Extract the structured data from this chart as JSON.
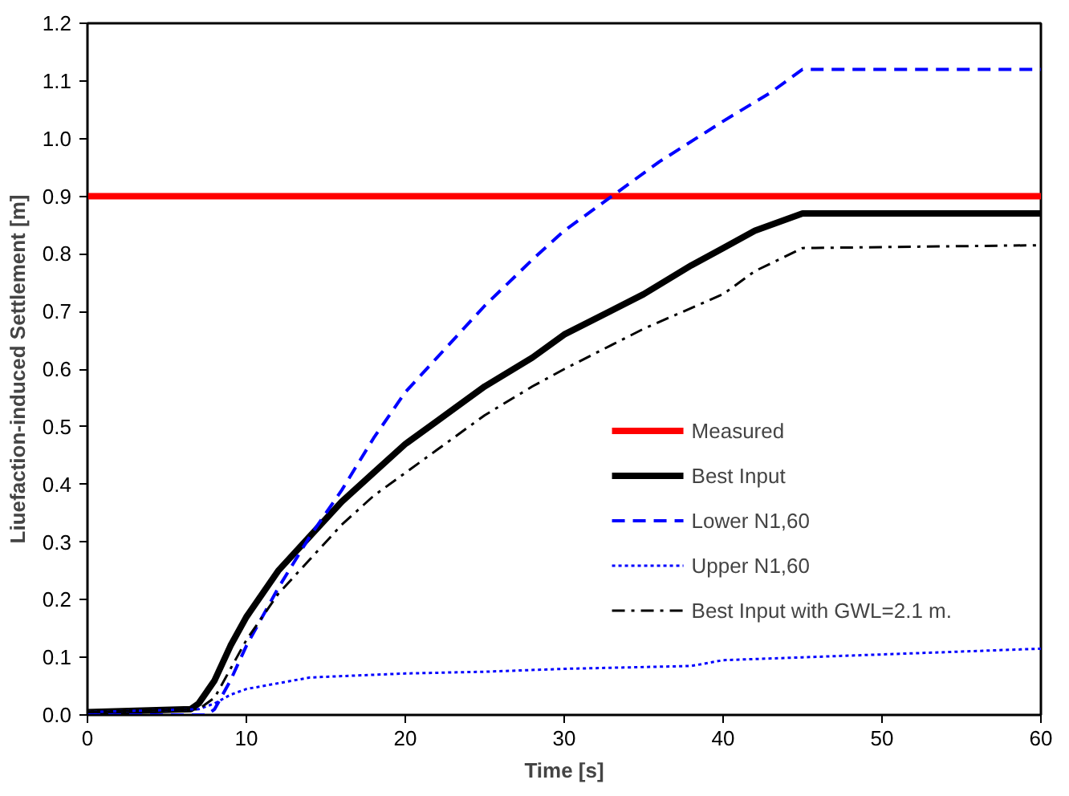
{
  "chart_data": {
    "type": "line",
    "xlabel": "Time [s]",
    "ylabel": "Liuefaction-induced Settlement [m]",
    "xlim": [
      0,
      60
    ],
    "xticks": [
      0,
      10,
      20,
      30,
      40,
      50,
      60
    ],
    "ylim": [
      0,
      1.2
    ],
    "yticks": [
      {
        "value": 0,
        "label": "0.0"
      },
      0.1,
      0.2,
      0.3,
      0.4,
      0.5,
      0.6,
      0.7,
      0.8,
      0.9,
      {
        "value": 1,
        "label": "1.0"
      },
      1.1,
      1.2
    ],
    "grid": false,
    "legend": "right",
    "series": [
      {
        "name": "Measured",
        "color": "#ff0000",
        "x": [
          0,
          60
        ],
        "values": [
          0.9,
          0.9
        ],
        "line_style": "solid"
      },
      {
        "name": "Best Input",
        "color": "#000000",
        "x": [
          0,
          6.5,
          7,
          8,
          9,
          10,
          12,
          14,
          16,
          18,
          20,
          22,
          25,
          28,
          30,
          35,
          38,
          40,
          42,
          45,
          60
        ],
        "values": [
          0.005,
          0.01,
          0.02,
          0.06,
          0.12,
          0.17,
          0.25,
          0.31,
          0.37,
          0.42,
          0.47,
          0.51,
          0.57,
          0.62,
          0.66,
          0.73,
          0.78,
          0.81,
          0.84,
          0.87,
          0.87
        ],
        "line_style": "solid"
      },
      {
        "name": "Lower N1,60",
        "color": "#0000ff",
        "x": [
          0,
          7.5,
          8,
          9,
          10,
          12,
          14,
          16,
          18,
          20,
          22,
          25,
          28,
          30,
          33,
          36,
          40,
          43,
          45,
          60
        ],
        "values": [
          0.0,
          0.0,
          0.01,
          0.06,
          0.12,
          0.22,
          0.31,
          0.39,
          0.48,
          0.56,
          0.62,
          0.71,
          0.79,
          0.84,
          0.9,
          0.96,
          1.03,
          1.08,
          1.12,
          1.12
        ],
        "line_style": "dashed"
      },
      {
        "name": "Upper N1,60",
        "color": "#0000ff",
        "x": [
          0,
          7,
          8,
          9,
          10,
          12,
          14,
          20,
          25,
          30,
          38,
          40,
          45,
          50,
          60
        ],
        "values": [
          0.005,
          0.01,
          0.02,
          0.035,
          0.045,
          0.055,
          0.065,
          0.072,
          0.075,
          0.08,
          0.085,
          0.095,
          0.1,
          0.105,
          0.115
        ],
        "line_style": "dotted"
      },
      {
        "name": "Best Input with GWL=2.1 m.",
        "color": "#000000",
        "x": [
          0,
          7,
          8,
          9,
          10,
          12,
          14,
          16,
          18,
          20,
          22,
          25,
          28,
          30,
          35,
          40,
          42,
          45,
          60
        ],
        "values": [
          0.005,
          0.01,
          0.03,
          0.08,
          0.13,
          0.21,
          0.27,
          0.33,
          0.38,
          0.42,
          0.46,
          0.52,
          0.57,
          0.6,
          0.67,
          0.73,
          0.77,
          0.81,
          0.815
        ],
        "line_style": "dashdot"
      }
    ]
  }
}
